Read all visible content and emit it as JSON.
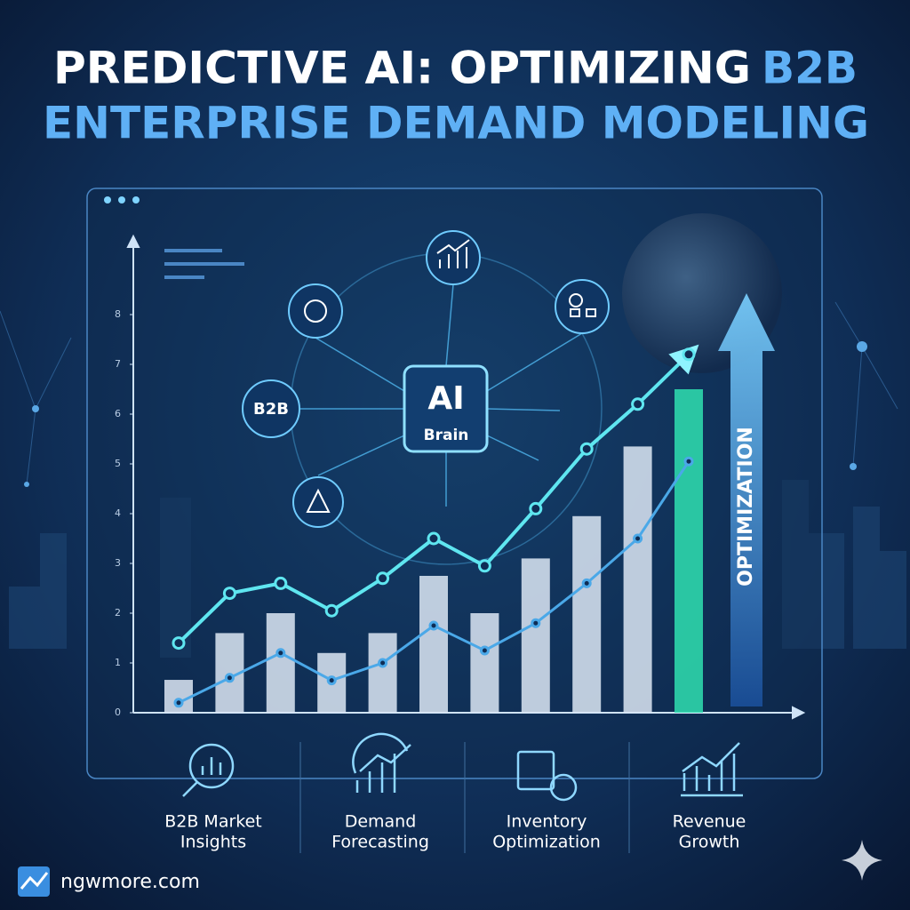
{
  "header": {
    "title": {
      "line1": "PREDICTIVE AI: OPTIMIZING",
      "highlight": "B2B",
      "line2": "ENTERPRISE DEMAND MODELING"
    }
  },
  "hub": {
    "chip": [
      "AI",
      "Brain"
    ],
    "node": "B2B",
    "arrow_label": "OPTIMIZATION"
  },
  "chart_data": {
    "type": "combo",
    "categories": [
      null,
      null,
      null,
      null,
      null,
      null,
      null,
      null,
      null,
      null,
      null
    ],
    "bars": {
      "values": [
        0.66,
        1.6,
        2.0,
        1.2,
        1.6,
        2.75,
        2.0,
        3.1,
        3.95,
        5.35,
        6.5
      ],
      "colors": [
        "#dde8f4",
        "#dde8f4",
        "#dde8f4",
        "#dde8f4",
        "#dde8f4",
        "#dde8f4",
        "#dde8f4",
        "#dde8f4",
        "#dde8f4",
        "#dde8f4",
        "#2fe0b0"
      ]
    },
    "lines": [
      {
        "color": "#5fe6f0",
        "values": [
          1.4,
          2.4,
          2.6,
          2.05,
          2.7,
          3.5,
          2.95,
          4.1,
          5.3,
          6.2,
          7.2
        ]
      },
      {
        "color": "#4aa8e8",
        "values": [
          0.2,
          0.7,
          1.2,
          0.65,
          1.0,
          1.75,
          1.25,
          1.8,
          2.6,
          3.5,
          5.05
        ]
      }
    ],
    "ylim": [
      0,
      9.5
    ],
    "yticks": [
      0,
      1,
      2,
      3,
      4,
      5,
      6,
      7,
      8
    ]
  },
  "features": [
    {
      "lines": [
        "B2B Market",
        "Insights"
      ]
    },
    {
      "lines": [
        "Demand",
        "Forecasting"
      ]
    },
    {
      "lines": [
        "Inventory",
        "Optimization"
      ]
    },
    {
      "lines": [
        "Revenue",
        "Growth"
      ]
    }
  ],
  "footer": {
    "site": "ngwmore.com"
  }
}
